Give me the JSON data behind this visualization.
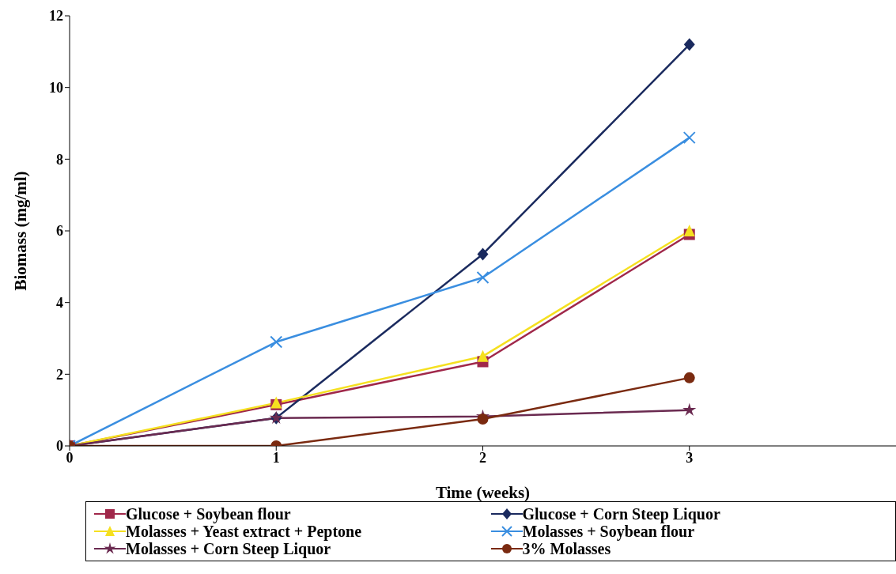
{
  "chart_data": {
    "type": "line",
    "xlabel": "Time (weeks)",
    "ylabel": "Biomass (mg/ml)",
    "x": [
      0,
      1,
      2,
      3
    ],
    "xlim": [
      0,
      4
    ],
    "xticks": [
      0,
      1,
      2,
      3
    ],
    "ylim": [
      0,
      12
    ],
    "yticks": [
      0,
      2,
      4,
      6,
      8,
      10,
      12
    ],
    "grid": false,
    "legend": "bottom",
    "line_style": "solid",
    "series": [
      {
        "name": "Glucose + Soybean flour",
        "color": "#a0284a",
        "marker": "square",
        "values": [
          0,
          1.15,
          2.35,
          5.9
        ]
      },
      {
        "name": "Glucose + Corn Steep Liquor",
        "color": "#1a2a5e",
        "marker": "diamond",
        "values": [
          0,
          0.78,
          5.35,
          11.2
        ]
      },
      {
        "name": "Molasses + Yeast extract + Peptone",
        "color": "#f5e020",
        "marker": "triangle",
        "values": [
          0,
          1.2,
          2.5,
          6.0
        ]
      },
      {
        "name": "Molasses + Soybean flour",
        "color": "#3a8ee0",
        "marker": "cross",
        "values": [
          0,
          2.9,
          4.7,
          8.6
        ]
      },
      {
        "name": "Molasses + Corn Steep Liquor",
        "color": "#6a2a50",
        "marker": "star",
        "values": [
          0,
          0.78,
          0.82,
          1.0
        ]
      },
      {
        "name": "3% Molasses",
        "color": "#7a2a10",
        "marker": "circle",
        "values": [
          0,
          0,
          0.75,
          1.9
        ]
      }
    ]
  }
}
